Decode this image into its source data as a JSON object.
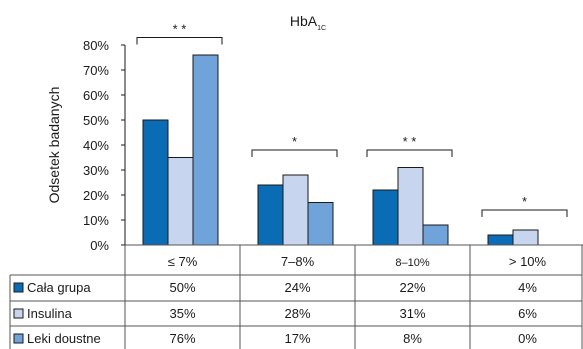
{
  "chart_data": {
    "type": "bar",
    "title": "HbA",
    "title_subscript": "1C",
    "ylabel": "Odsetek badanych",
    "xlabel": "",
    "ylim": [
      0,
      80
    ],
    "y_ticks": [
      "0%",
      "10%",
      "20%",
      "30%",
      "40%",
      "50%",
      "60%",
      "70%",
      "80%"
    ],
    "y_tick_values": [
      0,
      10,
      20,
      30,
      40,
      50,
      60,
      70,
      80
    ],
    "grid": false,
    "legend_placement": "data-table-left",
    "categories": [
      "≤ 7%",
      "7–8%",
      "8–10%",
      "> 10%"
    ],
    "series": [
      {
        "name": "Cała grupa",
        "values": [
          50,
          24,
          22,
          4
        ],
        "labels": [
          "50%",
          "24%",
          "22%",
          "4%"
        ],
        "color": "#0a6cb5"
      },
      {
        "name": "Insulina",
        "values": [
          35,
          28,
          31,
          6
        ],
        "labels": [
          "35%",
          "28%",
          "31%",
          "6%"
        ],
        "color": "#c7d6ee"
      },
      {
        "name": "Leki doustne",
        "values": [
          76,
          17,
          8,
          0
        ],
        "labels": [
          "76%",
          "17%",
          "8%",
          "0%"
        ],
        "color": "#6fa3da"
      }
    ],
    "significance": [
      {
        "category": 0,
        "label": "* *",
        "level": 83
      },
      {
        "category": 1,
        "label": "*",
        "level": 38
      },
      {
        "category": 2,
        "label": "* *",
        "level": 38
      },
      {
        "category": 3,
        "label": "*",
        "level": 14
      }
    ]
  },
  "colors": {
    "bar_border": "#1a1a1a",
    "table_border": "#555555",
    "text": "#1a1a1a"
  }
}
